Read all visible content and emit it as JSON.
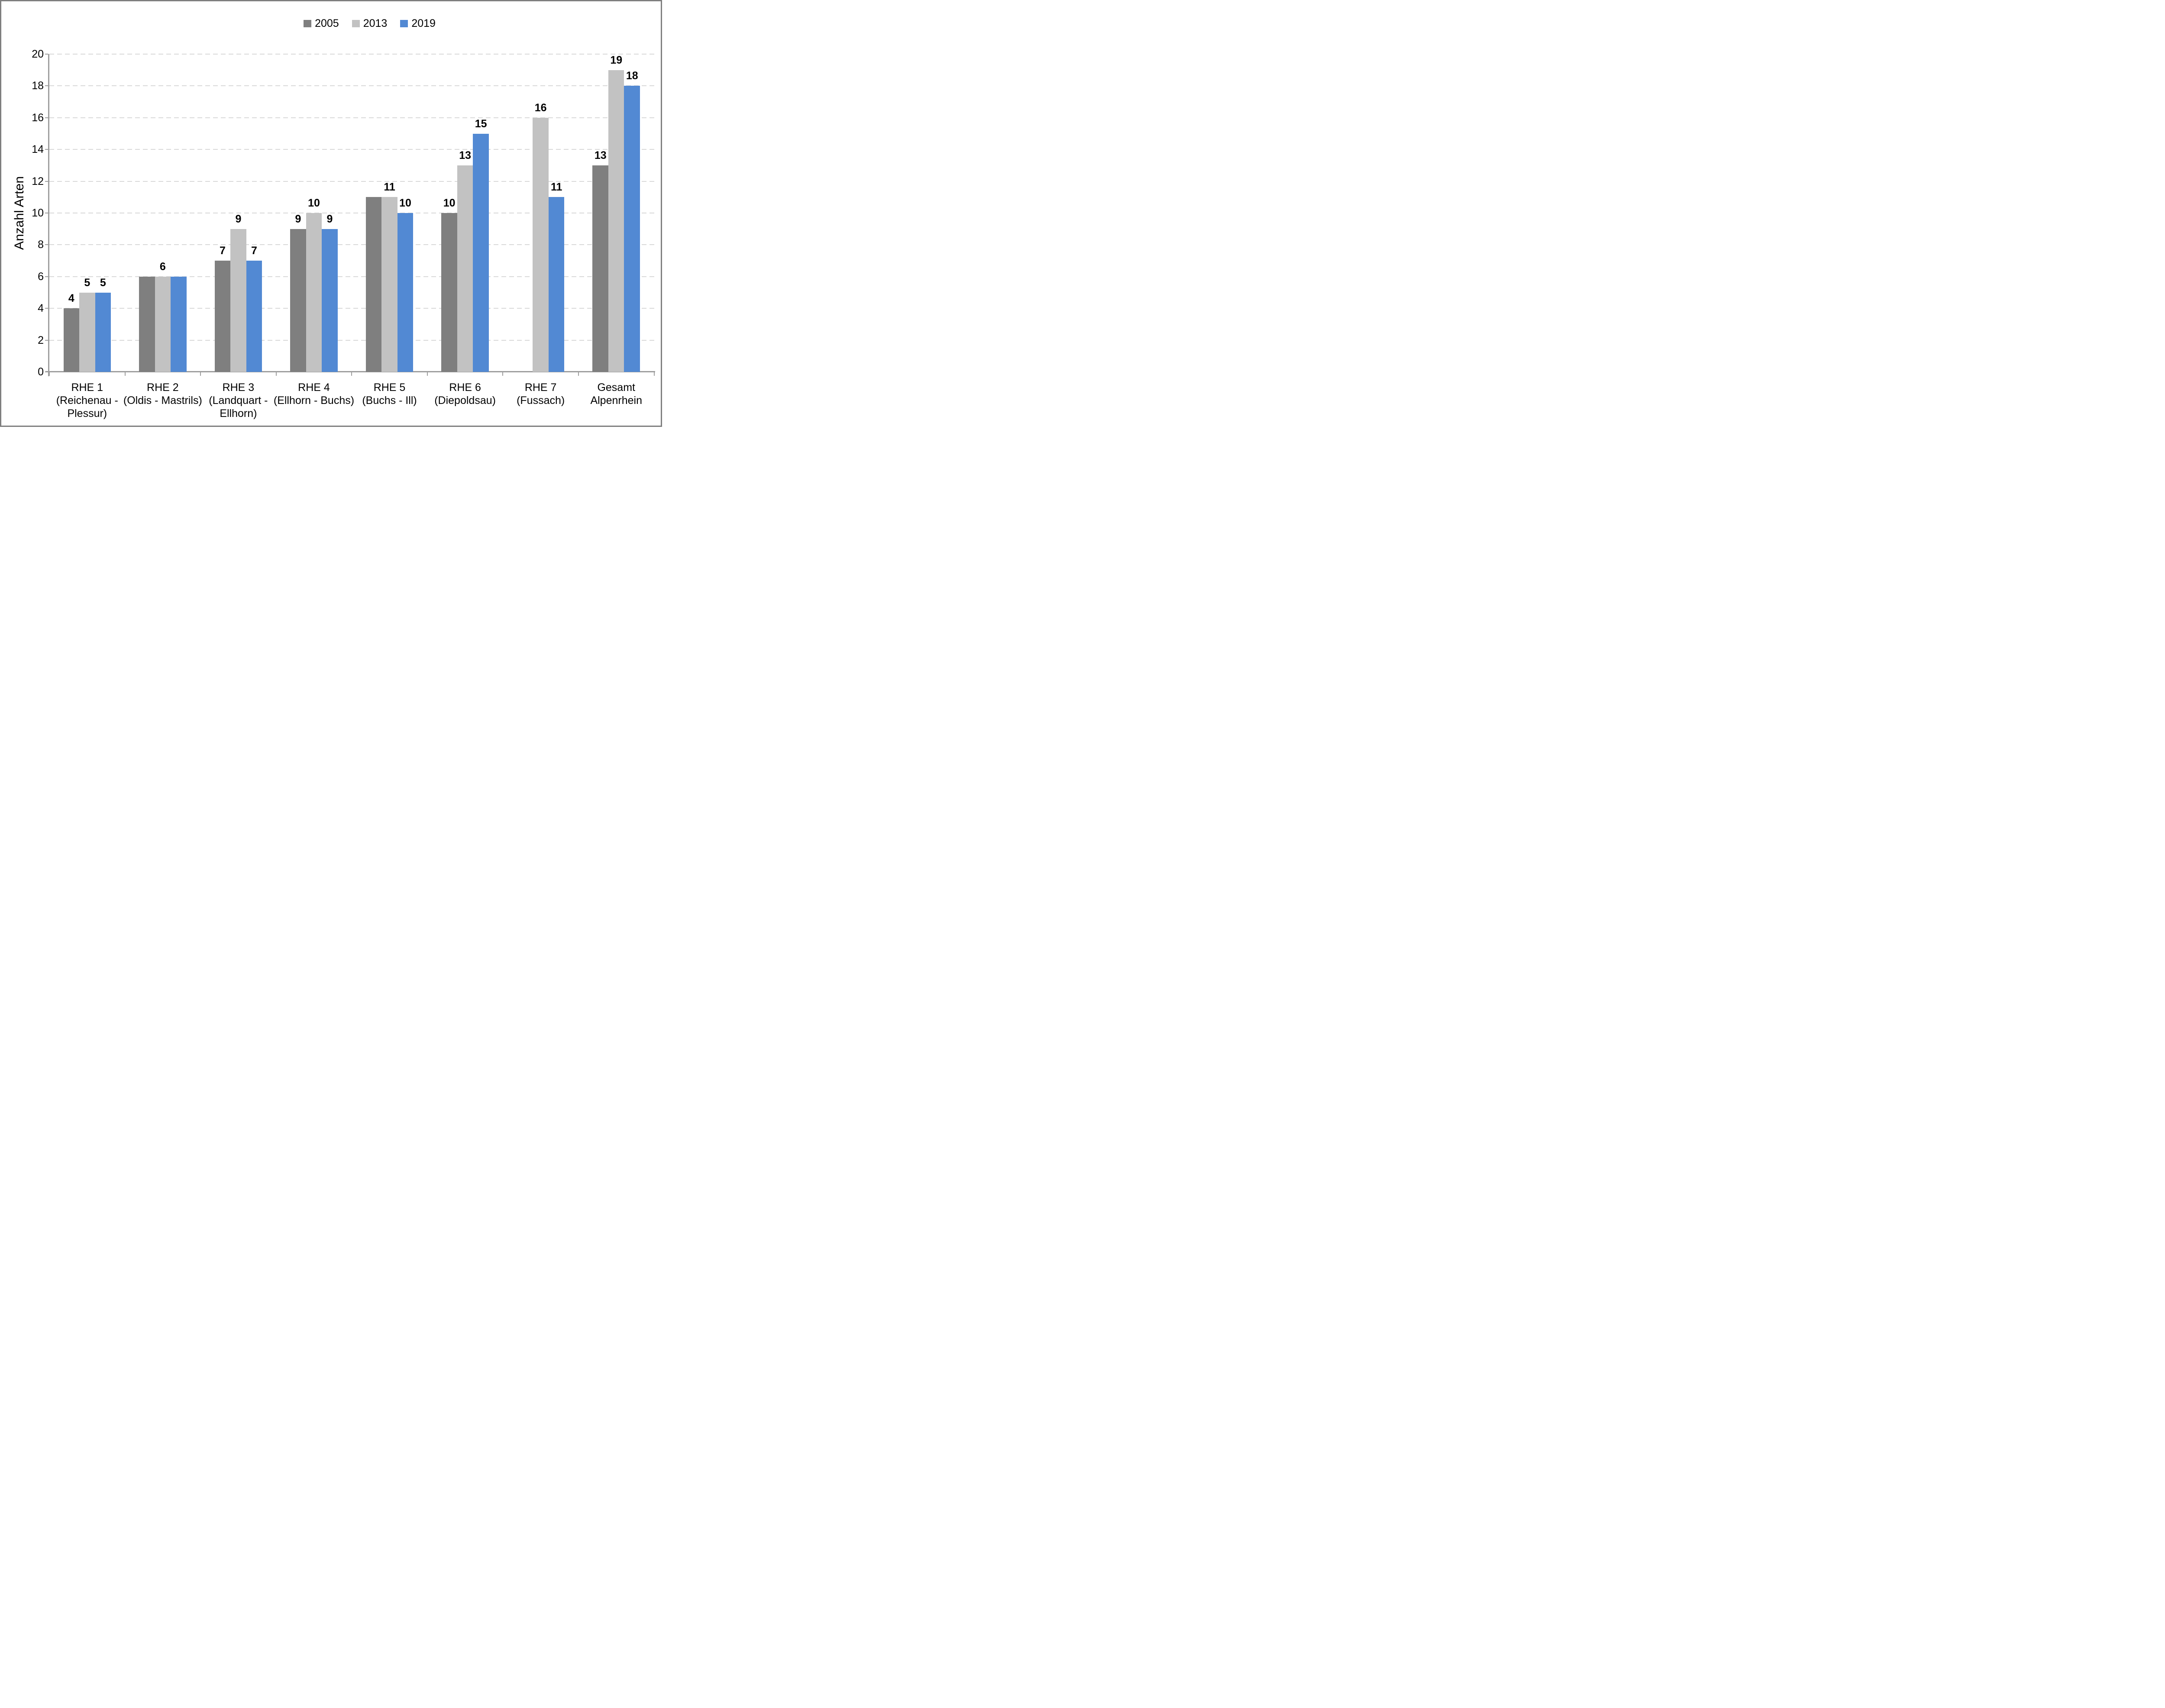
{
  "legend": {
    "items": [
      {
        "label": "2005",
        "color": "#7F7F7F"
      },
      {
        "label": "2013",
        "color": "#C2C2C2"
      },
      {
        "label": "2019",
        "color": "#5289D3"
      }
    ]
  },
  "y_axis": {
    "title": "Anzahl Arten",
    "tick_labels": [
      "0",
      "2",
      "4",
      "6",
      "8",
      "10",
      "12",
      "14",
      "16",
      "18",
      "20"
    ],
    "min": 0,
    "max": 20
  },
  "chart_data": {
    "type": "bar",
    "title": "",
    "ylabel": "Anzahl Arten",
    "xlabel": "",
    "ylim": [
      0,
      20
    ],
    "grid": {
      "horizontal": true,
      "style": "dashed",
      "interval": 2,
      "color": "#D9D9D9"
    },
    "legend_position": "top",
    "axis_color": "#9E9E9E",
    "categories": [
      "RHE 1\n(Reichenau -\nPlessur)",
      "RHE 2\n(Oldis - Mastrils)",
      "RHE 3\n(Landquart -\nEllhorn)",
      "RHE 4\n(Ellhorn - Buchs)",
      "RHE 5\n(Buchs - Ill)",
      "RHE 6\n(Diepoldsau)",
      "RHE 7\n(Fussach)",
      "Gesamt\nAlpenrhein"
    ],
    "series": [
      {
        "name": "2005",
        "color": "#7F7F7F",
        "values": [
          4,
          6,
          7,
          9,
          11,
          10,
          null,
          13
        ]
      },
      {
        "name": "2013",
        "color": "#C2C2C2",
        "values": [
          5,
          6,
          9,
          10,
          11,
          13,
          16,
          19
        ]
      },
      {
        "name": "2019",
        "color": "#5289D3",
        "values": [
          5,
          6,
          7,
          9,
          10,
          15,
          11,
          18
        ]
      }
    ],
    "bar_labels": [
      [
        "4",
        "5",
        "5"
      ],
      [
        "",
        "6",
        ""
      ],
      [
        "7",
        "9",
        "7"
      ],
      [
        "9",
        "10",
        "9"
      ],
      [
        "",
        "11",
        "10"
      ],
      [
        "10",
        "13",
        "15"
      ],
      [
        "",
        "16",
        "11"
      ],
      [
        "13",
        "19",
        "18"
      ]
    ]
  }
}
